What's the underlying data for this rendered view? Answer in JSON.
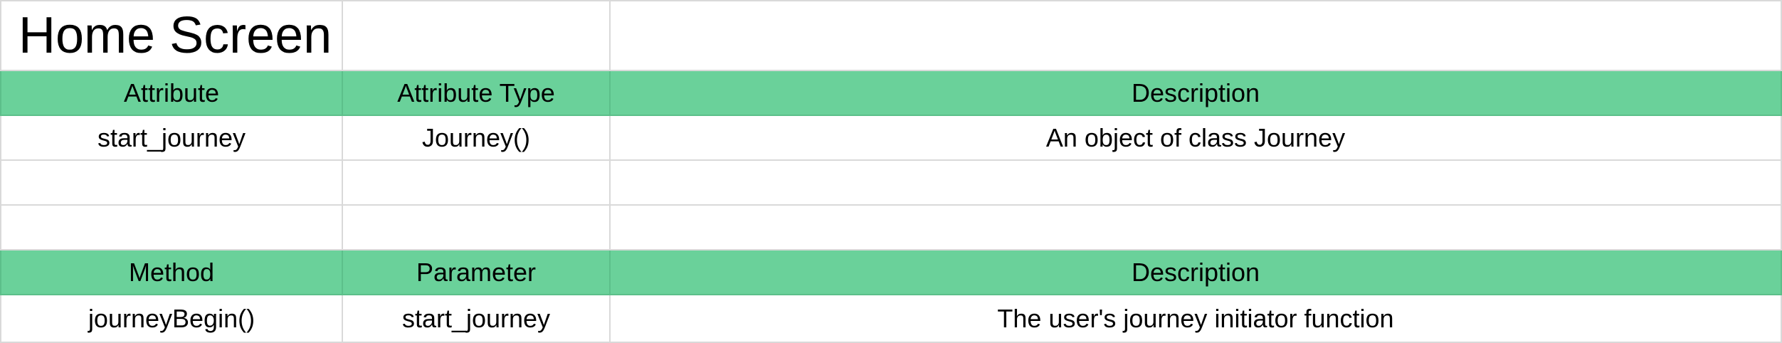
{
  "sheet": {
    "title": "Home Screen",
    "attributes_header": [
      "Attribute",
      "Attribute Type",
      "Description"
    ],
    "attributes_rows": [
      [
        "start_journey",
        "Journey()",
        "An object of class Journey"
      ]
    ],
    "methods_header": [
      "Method",
      "Parameter",
      "Description"
    ],
    "methods_rows": [
      [
        "journeyBegin()",
        "start_journey",
        "The user's journey initiator function"
      ]
    ],
    "colors": {
      "header_fill": "#6ad19a",
      "gridline": "#d9d9d9"
    }
  }
}
